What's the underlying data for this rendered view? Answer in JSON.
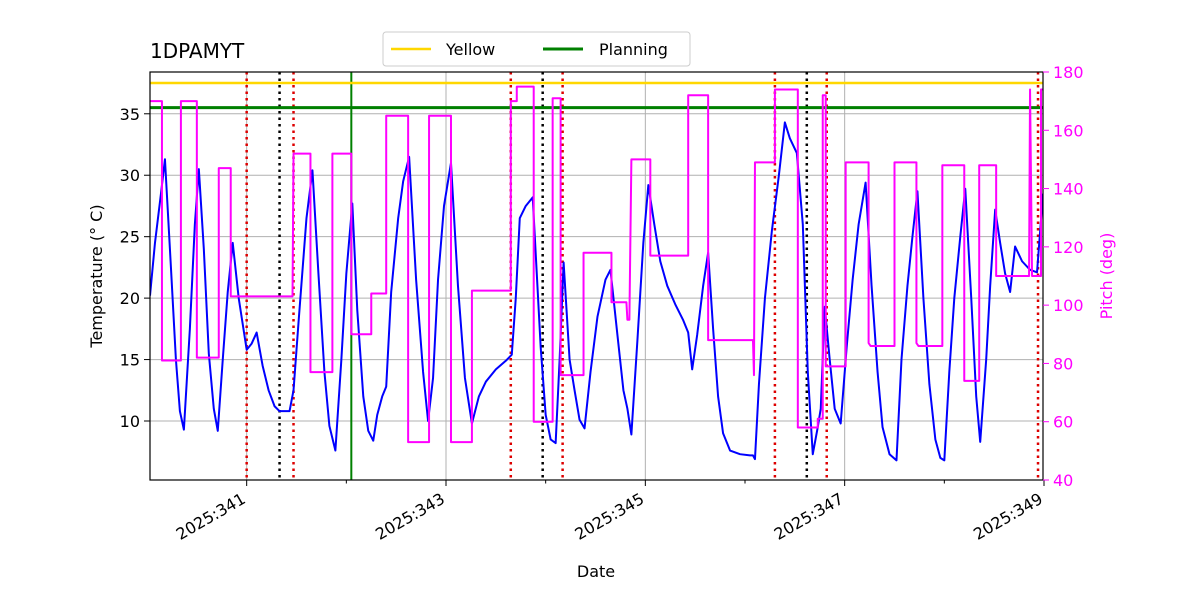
{
  "chart_data": {
    "type": "line",
    "title": "1DPAMYT",
    "xlabel": "Date",
    "ylabel": "Temperature ($^\\circ$C)",
    "ylabel_display": "Temperature (° C)",
    "y2label": "Pitch (deg)",
    "xlim": [
      340.03,
      348.99
    ],
    "ylim": [
      5.2,
      38.4
    ],
    "y2lim": [
      40,
      180
    ],
    "x_ticks": [
      341,
      343,
      345,
      347,
      349
    ],
    "x_tick_labels": [
      "2025:341",
      "2025:343",
      "2025:345",
      "2025:347",
      "2025:349"
    ],
    "x_minor_ticks": [
      342,
      344,
      346,
      348
    ],
    "y_ticks": [
      10,
      15,
      20,
      25,
      30,
      35
    ],
    "y2_ticks": [
      40,
      60,
      80,
      100,
      120,
      140,
      160,
      180
    ],
    "grid": true,
    "legend_position": "top-center",
    "colors": {
      "temperature": "#0000ff",
      "pitch": "#ff00ff",
      "yellow": "#ffd700",
      "planning": "#008000",
      "red_marker": "#dd0000",
      "black_marker": "#000000"
    },
    "hlines": [
      {
        "name": "Yellow",
        "value": 37.5,
        "color": "#ffd700"
      },
      {
        "name": "Planning",
        "value": 35.5,
        "color": "#008000"
      }
    ],
    "vlines": [
      {
        "name": "planning-marker",
        "x": 342.05,
        "color": "#008000",
        "style": "solid"
      },
      {
        "name": "black-marker",
        "x": 341.33,
        "color": "#000000",
        "style": "dotted"
      },
      {
        "name": "black-marker",
        "x": 343.97,
        "color": "#000000",
        "style": "dotted"
      },
      {
        "name": "black-marker",
        "x": 346.62,
        "color": "#000000",
        "style": "dotted"
      },
      {
        "name": "red-marker",
        "x": 341.0,
        "color": "#dd0000",
        "style": "dotted"
      },
      {
        "name": "red-marker",
        "x": 341.47,
        "color": "#dd0000",
        "style": "dotted"
      },
      {
        "name": "red-marker",
        "x": 343.65,
        "color": "#dd0000",
        "style": "dotted"
      },
      {
        "name": "red-marker",
        "x": 344.17,
        "color": "#dd0000",
        "style": "dotted"
      },
      {
        "name": "red-marker",
        "x": 346.3,
        "color": "#dd0000",
        "style": "dotted"
      },
      {
        "name": "red-marker",
        "x": 346.82,
        "color": "#dd0000",
        "style": "dotted"
      },
      {
        "name": "red-marker",
        "x": 348.94,
        "color": "#dd0000",
        "style": "dotted"
      }
    ],
    "series": [
      {
        "name": "Temperature",
        "axis": "left",
        "color": "#0000ff",
        "points": [
          [
            340.03,
            20.2
          ],
          [
            340.08,
            24.5
          ],
          [
            340.14,
            28.5
          ],
          [
            340.18,
            31.3
          ],
          [
            340.24,
            22.5
          ],
          [
            340.29,
            15.0
          ],
          [
            340.33,
            10.8
          ],
          [
            340.37,
            9.3
          ],
          [
            340.43,
            17.5
          ],
          [
            340.48,
            26.0
          ],
          [
            340.52,
            30.5
          ],
          [
            340.57,
            24.0
          ],
          [
            340.62,
            15.5
          ],
          [
            340.67,
            11.0
          ],
          [
            340.71,
            9.2
          ],
          [
            340.76,
            15.0
          ],
          [
            340.81,
            20.5
          ],
          [
            340.86,
            24.5
          ],
          [
            340.92,
            20.0
          ],
          [
            341.0,
            15.8
          ],
          [
            341.05,
            16.3
          ],
          [
            341.1,
            17.2
          ],
          [
            341.16,
            14.5
          ],
          [
            341.22,
            12.5
          ],
          [
            341.28,
            11.2
          ],
          [
            341.33,
            10.8
          ],
          [
            341.43,
            10.8
          ],
          [
            341.47,
            12.5
          ],
          [
            341.52,
            18.0
          ],
          [
            341.6,
            26.5
          ],
          [
            341.66,
            30.4
          ],
          [
            341.72,
            22.0
          ],
          [
            341.78,
            14.0
          ],
          [
            341.83,
            9.6
          ],
          [
            341.89,
            7.6
          ],
          [
            341.95,
            15.0
          ],
          [
            342.0,
            22.0
          ],
          [
            342.06,
            27.7
          ],
          [
            342.11,
            19.0
          ],
          [
            342.17,
            12.0
          ],
          [
            342.22,
            9.2
          ],
          [
            342.27,
            8.4
          ],
          [
            342.31,
            10.5
          ],
          [
            342.36,
            12.0
          ],
          [
            342.4,
            12.8
          ],
          [
            342.45,
            20.5
          ],
          [
            342.52,
            26.5
          ],
          [
            342.57,
            29.5
          ],
          [
            342.63,
            31.5
          ],
          [
            342.7,
            21.5
          ],
          [
            342.77,
            14.0
          ],
          [
            342.82,
            10.0
          ],
          [
            342.87,
            13.5
          ],
          [
            342.92,
            21.5
          ],
          [
            342.98,
            27.5
          ],
          [
            343.05,
            31.0
          ],
          [
            343.12,
            21.0
          ],
          [
            343.19,
            13.5
          ],
          [
            343.26,
            9.8
          ],
          [
            343.33,
            12.0
          ],
          [
            343.4,
            13.2
          ],
          [
            343.5,
            14.2
          ],
          [
            343.6,
            14.9
          ],
          [
            343.66,
            15.4
          ],
          [
            343.7,
            20.0
          ],
          [
            343.74,
            26.5
          ],
          [
            343.8,
            27.5
          ],
          [
            343.87,
            28.2
          ],
          [
            343.95,
            16.0
          ],
          [
            344.0,
            10.5
          ],
          [
            344.05,
            8.5
          ],
          [
            344.1,
            8.2
          ],
          [
            344.14,
            15.0
          ],
          [
            344.18,
            22.9
          ],
          [
            344.24,
            15.0
          ],
          [
            344.29,
            12.5
          ],
          [
            344.34,
            10.1
          ],
          [
            344.39,
            9.4
          ],
          [
            344.45,
            14.0
          ],
          [
            344.52,
            18.5
          ],
          [
            344.6,
            21.5
          ],
          [
            344.65,
            22.3
          ],
          [
            344.72,
            17.0
          ],
          [
            344.78,
            12.5
          ],
          [
            344.82,
            11.0
          ],
          [
            344.86,
            8.9
          ],
          [
            344.92,
            16.5
          ],
          [
            344.98,
            24.5
          ],
          [
            345.03,
            29.2
          ],
          [
            345.09,
            26.0
          ],
          [
            345.15,
            23.0
          ],
          [
            345.22,
            21.0
          ],
          [
            345.3,
            19.5
          ],
          [
            345.38,
            18.2
          ],
          [
            345.43,
            17.2
          ],
          [
            345.47,
            14.2
          ],
          [
            345.52,
            17.0
          ],
          [
            345.58,
            21.0
          ],
          [
            345.63,
            23.7
          ],
          [
            345.68,
            17.5
          ],
          [
            345.73,
            12.0
          ],
          [
            345.78,
            9.0
          ],
          [
            345.85,
            7.6
          ],
          [
            345.95,
            7.3
          ],
          [
            346.05,
            7.2
          ],
          [
            346.08,
            7.2
          ],
          [
            346.1,
            6.9
          ],
          [
            346.14,
            13.0
          ],
          [
            346.2,
            20.0
          ],
          [
            346.27,
            25.5
          ],
          [
            346.34,
            30.0
          ],
          [
            346.4,
            34.3
          ],
          [
            346.45,
            33.0
          ],
          [
            346.52,
            31.8
          ],
          [
            346.58,
            26.0
          ],
          [
            346.63,
            14.0
          ],
          [
            346.68,
            7.3
          ],
          [
            346.73,
            9.5
          ],
          [
            346.76,
            11.0
          ],
          [
            346.8,
            19.3
          ],
          [
            346.85,
            15.0
          ],
          [
            346.9,
            11.0
          ],
          [
            346.96,
            9.8
          ],
          [
            347.02,
            16.0
          ],
          [
            347.08,
            21.5
          ],
          [
            347.14,
            26.0
          ],
          [
            347.21,
            29.4
          ],
          [
            347.27,
            21.0
          ],
          [
            347.33,
            14.0
          ],
          [
            347.38,
            9.5
          ],
          [
            347.45,
            7.3
          ],
          [
            347.52,
            6.8
          ],
          [
            347.57,
            15.0
          ],
          [
            347.63,
            21.0
          ],
          [
            347.68,
            25.0
          ],
          [
            347.73,
            28.7
          ],
          [
            347.79,
            20.0
          ],
          [
            347.85,
            13.0
          ],
          [
            347.91,
            8.5
          ],
          [
            347.96,
            7.0
          ],
          [
            348.0,
            6.8
          ],
          [
            348.05,
            14.0
          ],
          [
            348.1,
            20.0
          ],
          [
            348.16,
            25.0
          ],
          [
            348.21,
            28.9
          ],
          [
            348.27,
            20.0
          ],
          [
            348.32,
            12.0
          ],
          [
            348.36,
            8.3
          ],
          [
            348.42,
            15.0
          ],
          [
            348.46,
            21.0
          ],
          [
            348.51,
            27.2
          ],
          [
            348.56,
            24.5
          ],
          [
            348.61,
            22.0
          ],
          [
            348.66,
            20.5
          ],
          [
            348.71,
            24.2
          ],
          [
            348.78,
            23.0
          ],
          [
            348.86,
            22.3
          ],
          [
            348.93,
            22.1
          ],
          [
            348.99,
            28.5
          ]
        ]
      },
      {
        "name": "Pitch",
        "axis": "right",
        "color": "#ff00ff",
        "points": [
          [
            340.03,
            170
          ],
          [
            340.15,
            170
          ],
          [
            340.15,
            81
          ],
          [
            340.34,
            81
          ],
          [
            340.34,
            170
          ],
          [
            340.5,
            170
          ],
          [
            340.5,
            82
          ],
          [
            340.72,
            82
          ],
          [
            340.72,
            147
          ],
          [
            340.84,
            147
          ],
          [
            340.84,
            103
          ],
          [
            341.46,
            103
          ],
          [
            341.47,
            152
          ],
          [
            341.64,
            152
          ],
          [
            341.64,
            77
          ],
          [
            341.86,
            77
          ],
          [
            341.86,
            152
          ],
          [
            342.05,
            152
          ],
          [
            342.05,
            90
          ],
          [
            342.25,
            90
          ],
          [
            342.25,
            104
          ],
          [
            342.4,
            104
          ],
          [
            342.4,
            165
          ],
          [
            342.62,
            165
          ],
          [
            342.62,
            53
          ],
          [
            342.83,
            53
          ],
          [
            342.83,
            165
          ],
          [
            343.05,
            165
          ],
          [
            343.05,
            53
          ],
          [
            343.26,
            53
          ],
          [
            343.26,
            105
          ],
          [
            343.65,
            105
          ],
          [
            343.65,
            170
          ],
          [
            343.71,
            170
          ],
          [
            343.71,
            175
          ],
          [
            343.88,
            175
          ],
          [
            343.88,
            60
          ],
          [
            344.07,
            60
          ],
          [
            344.07,
            171
          ],
          [
            344.15,
            171
          ],
          [
            344.15,
            76
          ],
          [
            344.38,
            76
          ],
          [
            344.38,
            118
          ],
          [
            344.66,
            118
          ],
          [
            344.66,
            101
          ],
          [
            344.81,
            101
          ],
          [
            344.82,
            95
          ],
          [
            344.84,
            95
          ],
          [
            344.86,
            150
          ],
          [
            345.05,
            150
          ],
          [
            345.05,
            117
          ],
          [
            345.43,
            117
          ],
          [
            345.43,
            172
          ],
          [
            345.63,
            172
          ],
          [
            345.63,
            88
          ],
          [
            346.08,
            88
          ],
          [
            346.09,
            76
          ],
          [
            346.1,
            149
          ],
          [
            346.3,
            149
          ],
          [
            346.3,
            174
          ],
          [
            346.53,
            174
          ],
          [
            346.53,
            58
          ],
          [
            346.73,
            58
          ],
          [
            346.73,
            61
          ],
          [
            346.78,
            61
          ],
          [
            346.78,
            172
          ],
          [
            346.81,
            172
          ],
          [
            346.81,
            79
          ],
          [
            347.01,
            79
          ],
          [
            347.01,
            149
          ],
          [
            347.24,
            149
          ],
          [
            347.24,
            87
          ],
          [
            347.26,
            86
          ],
          [
            347.5,
            86
          ],
          [
            347.5,
            149
          ],
          [
            347.72,
            149
          ],
          [
            347.72,
            87
          ],
          [
            347.74,
            86
          ],
          [
            347.98,
            86
          ],
          [
            347.98,
            148
          ],
          [
            348.2,
            148
          ],
          [
            348.2,
            74
          ],
          [
            348.35,
            74
          ],
          [
            348.35,
            148
          ],
          [
            348.52,
            148
          ],
          [
            348.52,
            110
          ],
          [
            348.85,
            110
          ],
          [
            348.86,
            174
          ],
          [
            348.88,
            110
          ],
          [
            348.97,
            110
          ],
          [
            348.97,
            174
          ],
          [
            348.99,
            174
          ]
        ]
      }
    ]
  }
}
